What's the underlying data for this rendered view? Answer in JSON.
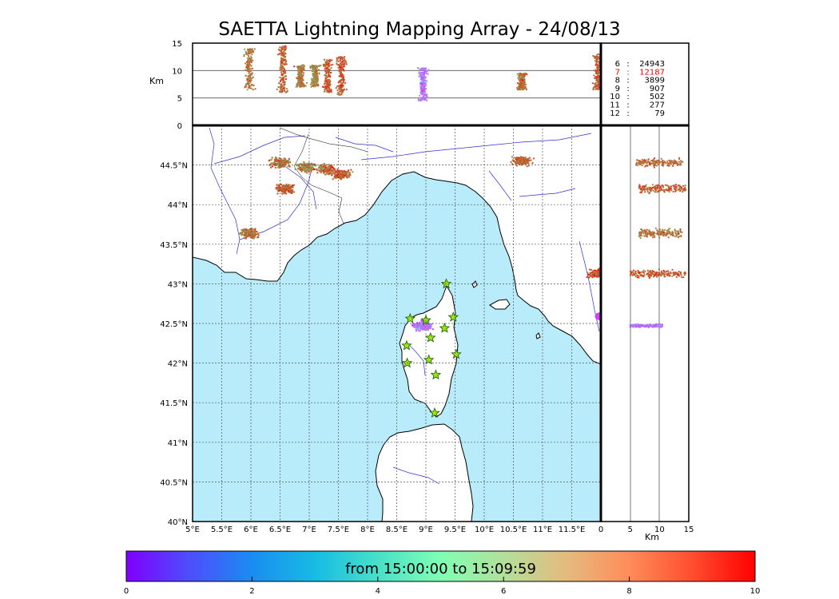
{
  "title": "SAETTA Lightning Mapping Array - 24/08/13",
  "colorbar": {
    "label": "from 15:00:00 to 15:09:59",
    "min": 0,
    "max": 10,
    "ticks": [
      "0",
      "2",
      "4",
      "6",
      "8",
      "10"
    ],
    "colormap": "rainbow"
  },
  "colors": {
    "sea": "#b8ecfb",
    "land": "#ffffff",
    "rivers": "#3030d8",
    "coast": "#000000",
    "grid": "#555555",
    "star_fill": "#9be312",
    "highlight_count": "#ff0000"
  },
  "chart_data": [
    {
      "panel": "altitude-longitude",
      "type": "scatter",
      "ylabel": "Km",
      "ylim": [
        0,
        15
      ],
      "yticks": [
        "0",
        "5",
        "10",
        "15"
      ],
      "xlim": [
        5,
        12
      ],
      "grid": "horizontal lines at 5 and 10 km",
      "clusters": [
        {
          "lon": 5.97,
          "alt": [
            6.5,
            14
          ],
          "time": 8.5
        },
        {
          "lon": 6.55,
          "alt": [
            6,
            14.5
          ],
          "time": 8.7
        },
        {
          "lon": 6.85,
          "alt": [
            7,
            11
          ],
          "time": 8.4
        },
        {
          "lon": 7.1,
          "alt": [
            7,
            11
          ],
          "time": 8.2
        },
        {
          "lon": 7.32,
          "alt": [
            6,
            12
          ],
          "time": 8.8
        },
        {
          "lon": 7.55,
          "alt": [
            5.5,
            12.5
          ],
          "time": 8.9
        },
        {
          "lon": 8.95,
          "alt": [
            4.5,
            10.5
          ],
          "time": 1.5
        },
        {
          "lon": 10.65,
          "alt": [
            6.5,
            9.5
          ],
          "time": 8.6
        },
        {
          "lon": 11.95,
          "alt": [
            6.5,
            13
          ],
          "time": 8.8
        }
      ]
    },
    {
      "panel": "altitude-histogram",
      "type": "table",
      "rows": [
        {
          "alt": "6",
          "count": "24943"
        },
        {
          "alt": "7",
          "count": "12187",
          "highlight": true
        },
        {
          "alt": "8",
          "count": "3899"
        },
        {
          "alt": "9",
          "count": "907"
        },
        {
          "alt": "10",
          "count": "502"
        },
        {
          "alt": "11",
          "count": "277"
        },
        {
          "alt": "12",
          "count": "79"
        }
      ]
    },
    {
      "panel": "plan-view",
      "type": "scatter",
      "xlim": [
        5,
        12
      ],
      "ylim": [
        40,
        45
      ],
      "xticks": [
        "5°E",
        "5.5°E",
        "6°E",
        "6.5°E",
        "7°E",
        "7.5°E",
        "8°E",
        "8.5°E",
        "9°E",
        "9.5°E",
        "10°E",
        "10.5°E",
        "11°E",
        "11.5°E"
      ],
      "yticks": [
        "40°N",
        "40.5°N",
        "41°N",
        "41.5°N",
        "42°N",
        "42.5°N",
        "43°N",
        "43.5°N",
        "44°N",
        "44.5°N"
      ],
      "grid": true,
      "clusters": [
        {
          "lon": 5.97,
          "lat": 43.64,
          "time": 8.5
        },
        {
          "lon": 6.5,
          "lat": 44.53,
          "time": 8.6
        },
        {
          "lon": 6.58,
          "lat": 44.2,
          "time": 8.8
        },
        {
          "lon": 6.95,
          "lat": 44.47,
          "time": 8.3
        },
        {
          "lon": 7.3,
          "lat": 44.45,
          "time": 8.6
        },
        {
          "lon": 7.55,
          "lat": 44.38,
          "time": 8.9
        },
        {
          "lon": 8.95,
          "lat": 42.47,
          "time": 1.5
        },
        {
          "lon": 10.65,
          "lat": 44.55,
          "time": 8.6
        },
        {
          "lon": 11.95,
          "lat": 43.13,
          "time": 8.9
        },
        {
          "lon": 11.98,
          "lat": 42.59,
          "time": 0.8
        }
      ],
      "stations": [
        {
          "lon": 9.35,
          "lat": 43.0
        },
        {
          "lon": 8.73,
          "lat": 42.56
        },
        {
          "lon": 9.0,
          "lat": 42.54
        },
        {
          "lon": 9.47,
          "lat": 42.58
        },
        {
          "lon": 9.32,
          "lat": 42.44
        },
        {
          "lon": 9.08,
          "lat": 42.32
        },
        {
          "lon": 8.67,
          "lat": 42.22
        },
        {
          "lon": 9.05,
          "lat": 42.04
        },
        {
          "lon": 8.68,
          "lat": 42.0
        },
        {
          "lon": 9.52,
          "lat": 42.11
        },
        {
          "lon": 9.17,
          "lat": 41.85
        },
        {
          "lon": 9.15,
          "lat": 41.37
        }
      ]
    },
    {
      "panel": "latitude-altitude",
      "type": "scatter",
      "xlabel": "Km",
      "xlim": [
        0,
        15
      ],
      "xticks": [
        "0",
        "5",
        "10",
        "15"
      ],
      "ylim": [
        40,
        45
      ],
      "grid": "vertical lines at 5 and 10 km",
      "clusters": [
        {
          "lat": 44.53,
          "alt": [
            6,
            14
          ],
          "time": 8.6
        },
        {
          "lat": 44.2,
          "alt": [
            6.5,
            14.5
          ],
          "time": 8.9
        },
        {
          "lat": 43.64,
          "alt": [
            6.5,
            14
          ],
          "time": 8.5
        },
        {
          "lat": 43.13,
          "alt": [
            5,
            14.5
          ],
          "time": 8.9
        },
        {
          "lat": 42.47,
          "alt": [
            5,
            10.5
          ],
          "time": 1.5
        }
      ]
    }
  ]
}
